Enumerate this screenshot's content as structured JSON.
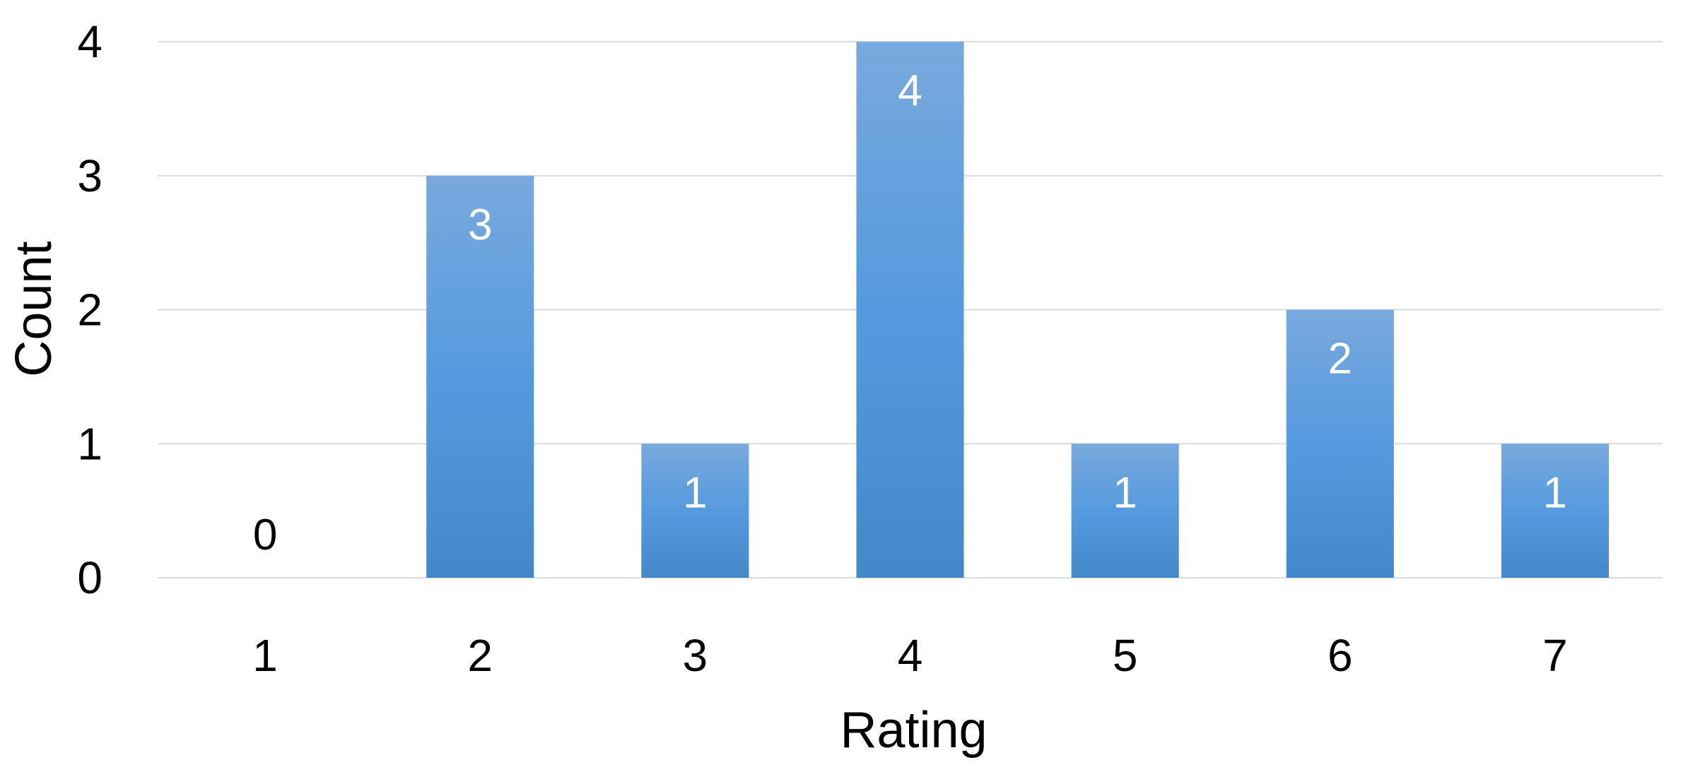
{
  "chart_data": {
    "type": "bar",
    "categories": [
      "1",
      "2",
      "3",
      "4",
      "5",
      "6",
      "7"
    ],
    "values": [
      0,
      3,
      1,
      4,
      1,
      2,
      1
    ],
    "title": "",
    "xlabel": "Rating",
    "ylabel": "Count",
    "ylim": [
      0,
      4
    ],
    "yticks": [
      "0",
      "1",
      "2",
      "3",
      "4"
    ],
    "data_labels": [
      "0",
      "3",
      "1",
      "4",
      "1",
      "2",
      "1"
    ],
    "grid": true,
    "legend": "none",
    "colors": {
      "bar_top": "#79a9dd",
      "bar_mid": "#559ade",
      "bar_bottom": "#4389c9",
      "grid": "#d9dce3",
      "text": "#000000",
      "label_inside": "#ffffff"
    }
  }
}
